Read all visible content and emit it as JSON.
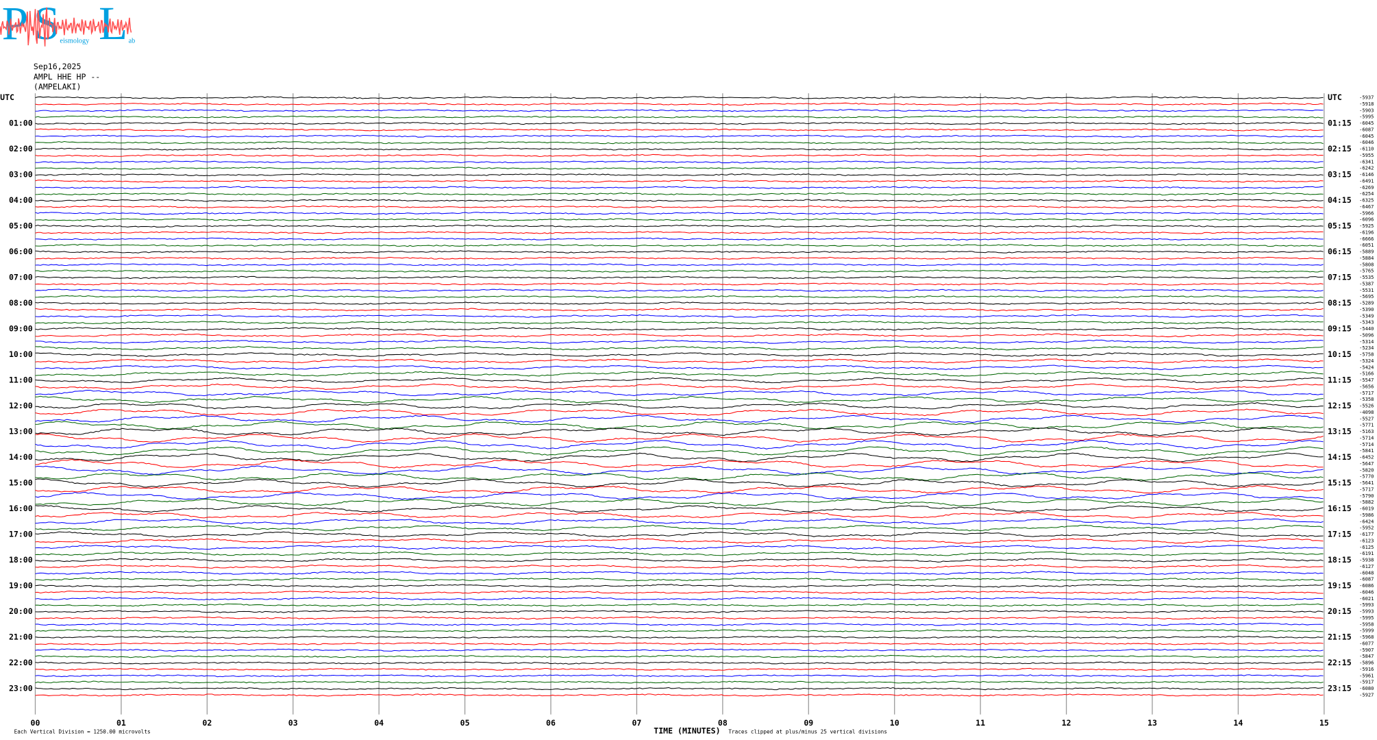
{
  "chart_data": {
    "type": "helicorder",
    "logo": {
      "letters": [
        "P",
        "S",
        "L"
      ],
      "words": [
        "eismology",
        "ab"
      ],
      "colors": [
        "#00a0e0",
        "#ff5050"
      ]
    },
    "header": [
      "Sep16,2025",
      "AMPL HHE HP --",
      "(AMPELAKI)"
    ],
    "left_labels": [
      "UTC",
      "01:00",
      "02:00",
      "03:00",
      "04:00",
      "05:00",
      "06:00",
      "07:00",
      "08:00",
      "09:00",
      "10:00",
      "11:00",
      "12:00",
      "13:00",
      "14:00",
      "15:00",
      "16:00",
      "17:00",
      "18:00",
      "19:00",
      "20:00",
      "21:00",
      "22:00",
      "23:00"
    ],
    "right_labels": [
      "UTC",
      "01:15",
      "02:15",
      "03:15",
      "04:15",
      "05:15",
      "06:15",
      "07:15",
      "08:15",
      "09:15",
      "10:15",
      "11:15",
      "12:15",
      "13:15",
      "14:15",
      "15:15",
      "16:15",
      "17:15",
      "18:15",
      "19:15",
      "20:15",
      "21:15",
      "22:15",
      "23:15"
    ],
    "trace_offsets": [
      -5937,
      -5918,
      -5903,
      -5995,
      -6045,
      -6087,
      -6045,
      -6046,
      -6110,
      -5955,
      -6341,
      -6242,
      -6146,
      -6491,
      -6269,
      -6254,
      -6325,
      -6467,
      -5966,
      -6096,
      -5925,
      -6196,
      -6666,
      -6051,
      -5889,
      -5884,
      -5808,
      -5765,
      -5535,
      -5387,
      -5531,
      -5695,
      -5289,
      -5390,
      -5349,
      -5343,
      -5440,
      -5096,
      -5314,
      -5234,
      -5758,
      -5324,
      -5424,
      -5166,
      -5547,
      -5656,
      -5717,
      -5358,
      -5526,
      -4098,
      -5527,
      -5771,
      -5163,
      -5714,
      -5714,
      -5841,
      -6452,
      -5647,
      -5820,
      -5770,
      -5641,
      -5717,
      -5790,
      -5882,
      -6019,
      -5986,
      -6424,
      -5952,
      -6177,
      -6123,
      -6125,
      -6191,
      -5938,
      -6127,
      -6048,
      -6087,
      -6086,
      -6046,
      -6021,
      -5993,
      -5993,
      -5995,
      -5958,
      -5999,
      -5968,
      -6077,
      -5907,
      -5847,
      -5896,
      -5916,
      -5961,
      -5917,
      -6080,
      -5927
    ],
    "trace_colors": [
      "#000000",
      "#ff0000",
      "#0000ff",
      "#006400"
    ],
    "xlim": [
      0,
      15
    ],
    "xticks": [
      {
        "value": 0,
        "label": "00"
      },
      {
        "value": 1,
        "label": "01"
      },
      {
        "value": 2,
        "label": "02"
      },
      {
        "value": 3,
        "label": "03"
      },
      {
        "value": 4,
        "label": "04"
      },
      {
        "value": 5,
        "label": "05"
      },
      {
        "value": 6,
        "label": "06"
      },
      {
        "value": 7,
        "label": "07"
      },
      {
        "value": 8,
        "label": "08"
      },
      {
        "value": 9,
        "label": "09"
      },
      {
        "value": 10,
        "label": "10"
      },
      {
        "value": 11,
        "label": "11"
      },
      {
        "value": 12,
        "label": "12"
      },
      {
        "value": 13,
        "label": "13"
      },
      {
        "value": 14,
        "label": "14"
      },
      {
        "value": 15,
        "label": "15"
      }
    ],
    "xlabel": "TIME (MINUTES)",
    "footer_left": "Each Vertical Division = 1250.00 microvolts",
    "footer_right": "Traces clipped at plus/minus 25 vertical divisions"
  }
}
